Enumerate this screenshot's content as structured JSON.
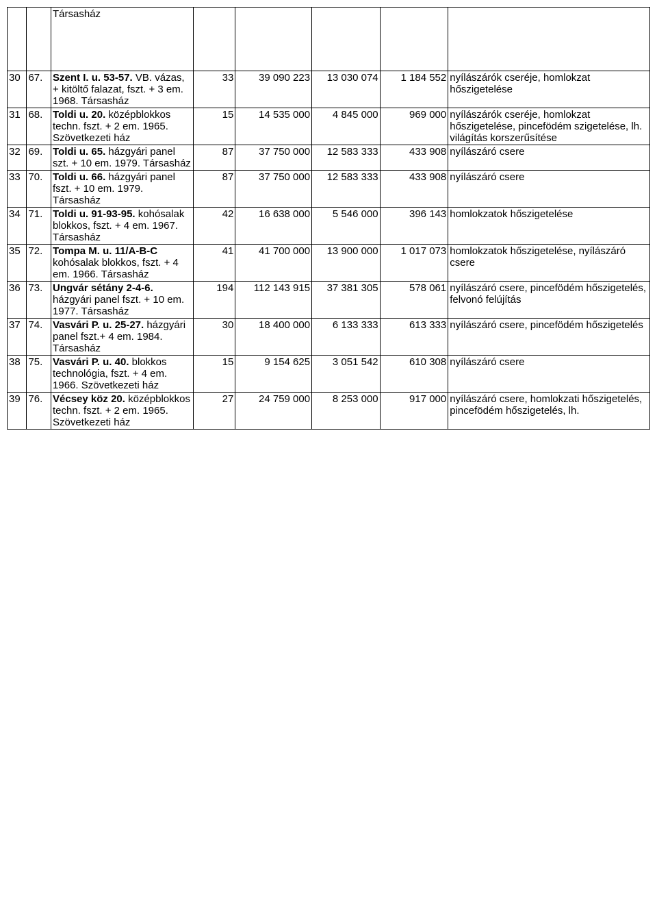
{
  "table": {
    "columns": 8,
    "header_row": {
      "c0": "",
      "c1": "",
      "c2": "Társasház",
      "c3": "",
      "c4": "",
      "c5": "",
      "c6": "",
      "c7": ""
    },
    "rows": [
      {
        "c0": "30",
        "c1": "67.",
        "c2_bold": "Szent I. u. 53-57.",
        "c2_rest": " VB. vázas, + kitöltő falazat, fszt. + 3 em. 1968. Társasház",
        "c3": "33",
        "c4": "39 090 223",
        "c5": "13 030 074",
        "c6": "1 184 552",
        "c7": "nyílászárók cseréje, homlokzat hőszigetelése"
      },
      {
        "c0": "31",
        "c1": "68.",
        "c2_bold": "Toldi u. 20.",
        "c2_rest": " középblokkos techn. fszt. + 2 em. 1965. Szövetkezeti ház",
        "c3": "15",
        "c4": "14 535 000",
        "c5": "4 845 000",
        "c6": "969 000",
        "c7": "nyílászárók cseréje, homlokzat hőszigetelése, pincefödém szigetelése, lh. világítás korszerűsítése"
      },
      {
        "c0": "32",
        "c1": "69.",
        "c2_bold": "Toldi u. 65.",
        "c2_rest": " házgyári panel szt. + 10 em. 1979. Társasház",
        "c3": "87",
        "c4": "37 750 000",
        "c5": "12 583 333",
        "c6": "433 908",
        "c7": "nyílászáró csere"
      },
      {
        "c0": "33",
        "c1": "70.",
        "c2_bold": "Toldi u. 66.",
        "c2_rest": " házgyári panel fszt. + 10 em. 1979. Társasház",
        "c3": "87",
        "c4": "37 750 000",
        "c5": "12 583 333",
        "c6": "433 908",
        "c7": "nyílászáró csere"
      },
      {
        "c0": "34",
        "c1": "71.",
        "c2_bold": "Toldi u. 91-93-95.",
        "c2_rest": " kohósalak blokkos, fszt. + 4 em. 1967. Társasház",
        "c3": "42",
        "c4": "16 638 000",
        "c5": "5 546 000",
        "c6": "396 143",
        "c7": "homlokzatok hőszigetelése"
      },
      {
        "c0": "35",
        "c1": "72.",
        "c2_bold": "Tompa M. u. 11/A-B-C",
        "c2_rest": " kohósalak blokkos, fszt. + 4 em. 1966. Társasház",
        "c3": "41",
        "c4": "41 700 000",
        "c5": "13 900 000",
        "c6": "1 017 073",
        "c7": "homlokzatok hőszigetelése, nyílászáró csere"
      },
      {
        "c0": "36",
        "c1": "73.",
        "c2_bold": "Ungvár sétány 2-4-6.",
        "c2_rest": " házgyári panel fszt. + 10 em. 1977. Társasház",
        "c3": "194",
        "c4": "112 143 915",
        "c5": "37 381 305",
        "c6": "578 061",
        "c7": "nyílászáró csere, pincefödém hőszigetelés, felvonó felújítás"
      },
      {
        "c0": "37",
        "c1": "74.",
        "c2_bold": "Vasvári P. u. 25-27.",
        "c2_rest": " házgyári panel fszt.+ 4 em. 1984. Társasház",
        "c3": "30",
        "c4": "18 400 000",
        "c5": "6 133 333",
        "c6": "613 333",
        "c7": "nyílászáró csere, pincefödém hőszigetelés"
      },
      {
        "c0": "38",
        "c1": "75.",
        "c2_bold": "Vasvári P. u. 40.",
        "c2_rest": " blokkos technológia, fszt. + 4 em. 1966. Szövetkezeti ház",
        "c3": "15",
        "c4": "9 154 625",
        "c5": "3 051 542",
        "c6": "610 308",
        "c7": "nyílászáró csere"
      },
      {
        "c0": "39",
        "c1": "76.",
        "c2_bold": "Vécsey köz 20.",
        "c2_rest": " középblokkos techn. fszt. + 2 em. 1965. Szövetkezeti ház",
        "c3": "27",
        "c4": "24 759 000",
        "c5": "8 253 000",
        "c6": "917 000",
        "c7": "nyílászáró csere, homlokzati hőszigetelés, pincefödém hőszigetelés, lh."
      }
    ]
  }
}
